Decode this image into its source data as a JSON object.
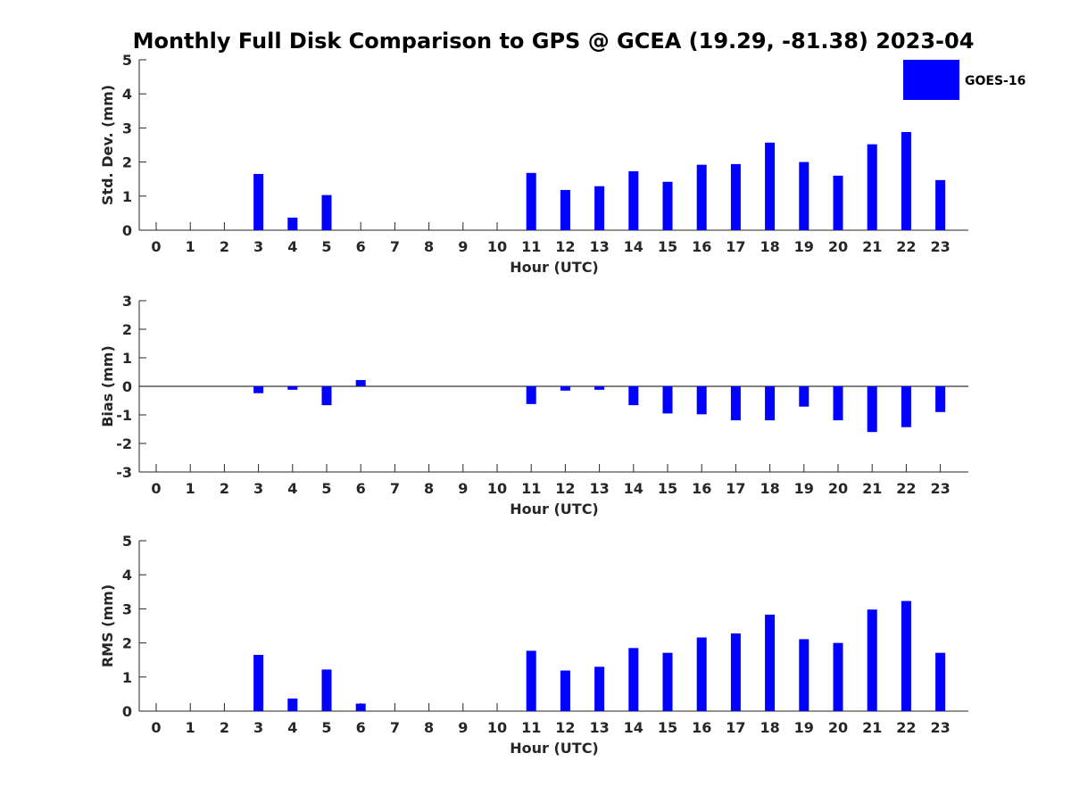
{
  "title": "Monthly Full Disk Comparison to GPS @ GCEA (19.29, -81.38) 2023-04",
  "legend": {
    "label": "GOES-16",
    "color": "#0000ff",
    "placement": "top-right"
  },
  "chart_data": [
    {
      "type": "bar",
      "xlabel": "Hour (UTC)",
      "ylabel": "Std. Dev. (mm)",
      "ylim": [
        0,
        5
      ],
      "yticks": [
        0,
        1,
        2,
        3,
        4,
        5
      ],
      "categories": [
        "0",
        "1",
        "2",
        "3",
        "4",
        "5",
        "6",
        "7",
        "8",
        "9",
        "10",
        "11",
        "12",
        "13",
        "14",
        "15",
        "16",
        "17",
        "18",
        "19",
        "20",
        "21",
        "22",
        "23"
      ],
      "series": [
        {
          "name": "GOES-16",
          "values": [
            null,
            null,
            null,
            1.65,
            0.37,
            1.03,
            null,
            null,
            null,
            null,
            null,
            1.68,
            1.18,
            1.29,
            1.73,
            1.42,
            1.92,
            1.94,
            2.57,
            2.0,
            1.6,
            2.52,
            2.88,
            1.47
          ]
        }
      ],
      "grid": false,
      "zero_line": false
    },
    {
      "type": "bar",
      "xlabel": "Hour (UTC)",
      "ylabel": "Bias (mm)",
      "ylim": [
        -3,
        3
      ],
      "yticks": [
        -3,
        -2,
        -1,
        0,
        1,
        2,
        3
      ],
      "categories": [
        "0",
        "1",
        "2",
        "3",
        "4",
        "5",
        "6",
        "7",
        "8",
        "9",
        "10",
        "11",
        "12",
        "13",
        "14",
        "15",
        "16",
        "17",
        "18",
        "19",
        "20",
        "21",
        "22",
        "23"
      ],
      "series": [
        {
          "values": [
            null,
            null,
            null,
            -0.24,
            -0.12,
            -0.66,
            0.22,
            null,
            null,
            null,
            null,
            -0.62,
            -0.15,
            -0.12,
            -0.66,
            -0.95,
            -0.98,
            -1.19,
            -1.19,
            -0.71,
            -1.19,
            -1.6,
            -1.43,
            -0.9
          ]
        }
      ],
      "grid": false,
      "zero_line": true
    },
    {
      "type": "bar",
      "xlabel": "Hour (UTC)",
      "ylabel": "RMS (mm)",
      "ylim": [
        0,
        5
      ],
      "yticks": [
        0,
        1,
        2,
        3,
        4,
        5
      ],
      "categories": [
        "0",
        "1",
        "2",
        "3",
        "4",
        "5",
        "6",
        "7",
        "8",
        "9",
        "10",
        "11",
        "12",
        "13",
        "14",
        "15",
        "16",
        "17",
        "18",
        "19",
        "20",
        "21",
        "22",
        "23"
      ],
      "series": [
        {
          "values": [
            null,
            null,
            null,
            1.65,
            0.37,
            1.22,
            0.22,
            null,
            null,
            null,
            null,
            1.77,
            1.19,
            1.3,
            1.85,
            1.71,
            2.16,
            2.28,
            2.83,
            2.11,
            2.0,
            2.98,
            3.23,
            1.71
          ]
        }
      ],
      "grid": false,
      "zero_line": false
    }
  ]
}
